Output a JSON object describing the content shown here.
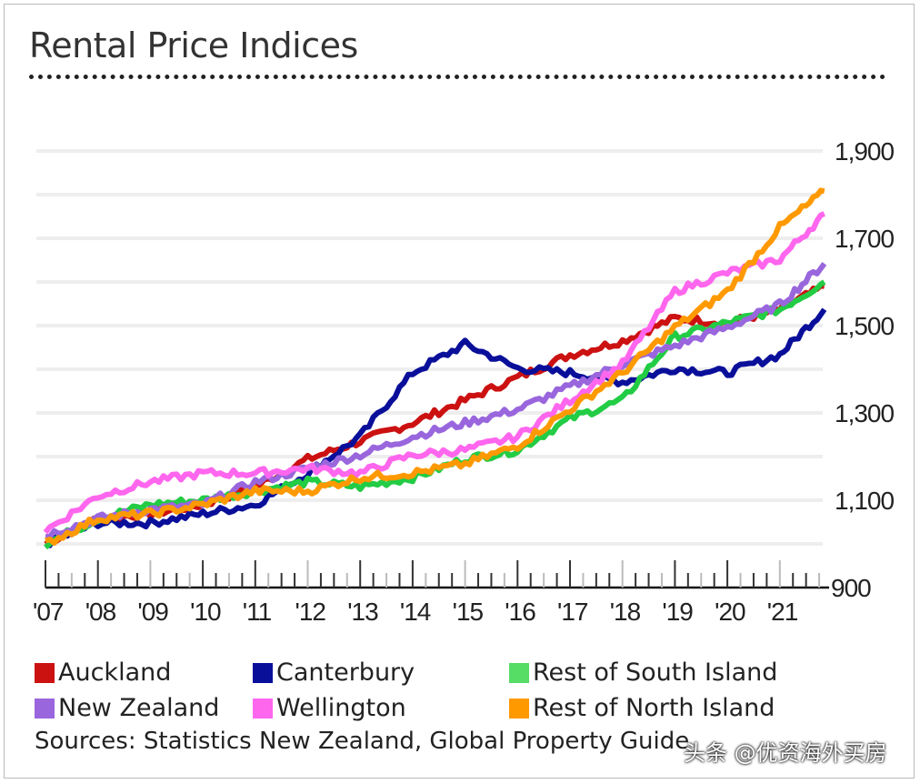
{
  "chart_data": {
    "type": "line",
    "title": "Rental Price Indices",
    "ylim": [
      900,
      1900
    ],
    "y_ticks": [
      "900",
      "1,100",
      "1,300",
      "1,500",
      "1,700",
      "1,900"
    ],
    "y_tick_values": [
      900,
      1100,
      1300,
      1500,
      1700,
      1900
    ],
    "x_tick_labels": [
      "'07",
      "'08",
      "'09",
      "'10",
      "'11",
      "'12",
      "'13",
      "'14",
      "'15",
      "'16",
      "'17",
      "'18",
      "'19",
      "'20",
      "'21"
    ],
    "x": [
      2007,
      2008,
      2009,
      2010,
      2011,
      2012,
      2013,
      2014,
      2015,
      2016,
      2017,
      2018,
      2019,
      2020,
      2021,
      2021.85
    ],
    "grid": true,
    "y_axis_side": "right",
    "legend_placement": "bottom",
    "series": [
      {
        "name": "Auckland",
        "color": "#cc1111",
        "values": [
          1000,
          1058,
          1069,
          1090,
          1131,
          1194,
          1235,
          1277,
          1329,
          1381,
          1433,
          1465,
          1517,
          1506,
          1537,
          1590
        ]
      },
      {
        "name": "Canterbury",
        "color": "#0a0f9a",
        "values": [
          1000,
          1048,
          1048,
          1069,
          1090,
          1162,
          1246,
          1392,
          1458,
          1402,
          1392,
          1371,
          1402,
          1392,
          1433,
          1537
        ]
      },
      {
        "name": "Rest of South Island",
        "color": "#22cc44",
        "values": [
          1000,
          1058,
          1090,
          1100,
          1121,
          1142,
          1131,
          1152,
          1194,
          1215,
          1287,
          1329,
          1475,
          1506,
          1537,
          1600
        ]
      },
      {
        "name": "New Zealand",
        "color": "#9966dd",
        "values": [
          1020,
          1058,
          1079,
          1090,
          1142,
          1173,
          1204,
          1246,
          1277,
          1308,
          1360,
          1412,
          1454,
          1496,
          1548,
          1642
        ]
      },
      {
        "name": "Wellington",
        "color": "#ff66ee",
        "values": [
          1030,
          1110,
          1142,
          1162,
          1162,
          1173,
          1162,
          1204,
          1215,
          1246,
          1329,
          1412,
          1579,
          1621,
          1652,
          1756
        ]
      },
      {
        "name": "Rest of North Island",
        "color": "#ff9900",
        "values": [
          1000,
          1058,
          1069,
          1090,
          1121,
          1121,
          1152,
          1162,
          1183,
          1225,
          1308,
          1392,
          1496,
          1579,
          1725,
          1808
        ]
      }
    ],
    "source": "Sources:  Statistics New Zealand, Global Property Guide"
  },
  "watermark": "头条 @优资海外买房"
}
